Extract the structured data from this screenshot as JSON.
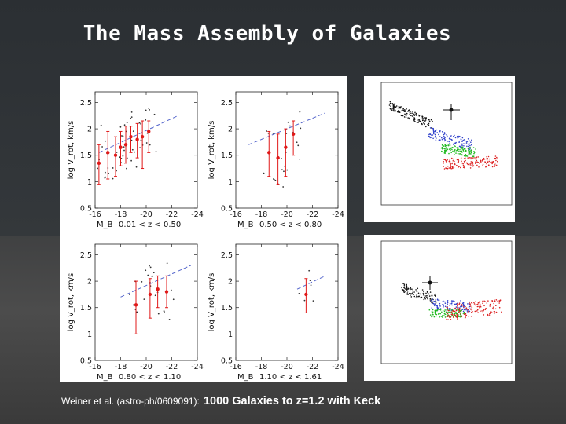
{
  "slide": {
    "title": "The Mass Assembly of Galaxies",
    "caption_ref": "Weiner et al. (astro-ph/0609091):",
    "caption_main": "1000 Galaxies to z=1.2  with Keck"
  },
  "colors": {
    "accent_red": "#e01818",
    "fit_blue": "#5566cc",
    "tf_black": "#222222"
  },
  "chart_data": [
    {
      "type": "scatter",
      "panel": "top-left",
      "ylabel": "log V_rot, km/s",
      "xlabel": "M_B",
      "range_label": "0.01 < z < 0.50",
      "xlim": [
        -16,
        -24
      ],
      "ylim": [
        0.5,
        2.7
      ],
      "xticks": [
        "-16",
        "-18",
        "-20",
        "-22",
        "-24"
      ],
      "yticks": [
        "0.5",
        "1",
        "1.5",
        "2",
        "2.5"
      ],
      "fit_line": [
        [
          -16.3,
          1.55
        ],
        [
          -22.5,
          2.25
        ]
      ],
      "binned": [
        {
          "x": -16.3,
          "y": 1.35,
          "lo": 0.95,
          "hi": 1.7
        },
        {
          "x": -17.0,
          "y": 1.55,
          "lo": 1.05,
          "hi": 1.95
        },
        {
          "x": -17.6,
          "y": 1.5,
          "lo": 1.1,
          "hi": 1.85
        },
        {
          "x": -18.0,
          "y": 1.65,
          "lo": 1.3,
          "hi": 1.95
        },
        {
          "x": -18.4,
          "y": 1.7,
          "lo": 1.35,
          "hi": 2.05
        },
        {
          "x": -18.8,
          "y": 1.85,
          "lo": 1.55,
          "hi": 2.05
        },
        {
          "x": -19.3,
          "y": 1.8,
          "lo": 1.45,
          "hi": 2.1
        },
        {
          "x": -19.7,
          "y": 1.85,
          "lo": 1.25,
          "hi": 2.15
        },
        {
          "x": -20.2,
          "y": 1.95,
          "lo": 1.55,
          "hi": 2.15
        }
      ]
    },
    {
      "type": "scatter",
      "panel": "top-right",
      "ylabel": "log V_rot, km/s",
      "xlabel": "M_B",
      "range_label": "0.50 < z < 0.80",
      "xlim": [
        -16,
        -24
      ],
      "ylim": [
        0.5,
        2.7
      ],
      "xticks": [
        "-16",
        "-18",
        "-20",
        "-22",
        "-24"
      ],
      "yticks": [
        "0.5",
        "1",
        "1.5",
        "2",
        "2.5"
      ],
      "fit_line": [
        [
          -17.0,
          1.7
        ],
        [
          -23.0,
          2.3
        ]
      ],
      "binned": [
        {
          "x": -18.6,
          "y": 1.55,
          "lo": 1.1,
          "hi": 1.95
        },
        {
          "x": -19.3,
          "y": 1.45,
          "lo": 0.95,
          "hi": 1.9
        },
        {
          "x": -19.9,
          "y": 1.65,
          "lo": 1.1,
          "hi": 2.0
        },
        {
          "x": -20.5,
          "y": 1.9,
          "lo": 1.5,
          "hi": 2.15
        }
      ]
    },
    {
      "type": "scatter",
      "panel": "bottom-left",
      "ylabel": "log V_rot, km/s",
      "xlabel": "M_B",
      "range_label": "0.80 < z < 1.10",
      "xlim": [
        -16,
        -24
      ],
      "ylim": [
        0.5,
        2.7
      ],
      "xticks": [
        "-16",
        "-18",
        "-20",
        "-22",
        "-24"
      ],
      "yticks": [
        "0.5",
        "1",
        "1.5",
        "2",
        "2.5"
      ],
      "fit_line": [
        [
          -18.0,
          1.7
        ],
        [
          -23.5,
          2.3
        ]
      ],
      "binned": [
        {
          "x": -19.2,
          "y": 1.55,
          "lo": 1.0,
          "hi": 2.0
        },
        {
          "x": -20.3,
          "y": 1.75,
          "lo": 1.3,
          "hi": 2.05
        },
        {
          "x": -20.9,
          "y": 1.85,
          "lo": 1.5,
          "hi": 2.1
        },
        {
          "x": -21.6,
          "y": 1.8,
          "lo": 1.5,
          "hi": 2.1
        }
      ]
    },
    {
      "type": "scatter",
      "panel": "bottom-right",
      "ylabel": "log V_rot, km/s",
      "xlabel": "M_B",
      "range_label": "1.10 < z < 1.61",
      "xlim": [
        -16,
        -24
      ],
      "ylim": [
        0.5,
        2.7
      ],
      "xticks": [
        "-16",
        "-18",
        "-20",
        "-22",
        "-24"
      ],
      "yticks": [
        "0.5",
        "1",
        "1.5",
        "2",
        "2.5"
      ],
      "fit_line": [
        [
          -20.8,
          1.85
        ],
        [
          -23.0,
          2.1
        ]
      ],
      "binned": [
        {
          "x": -21.5,
          "y": 1.75,
          "lo": 1.4,
          "hi": 2.05
        }
      ]
    }
  ]
}
